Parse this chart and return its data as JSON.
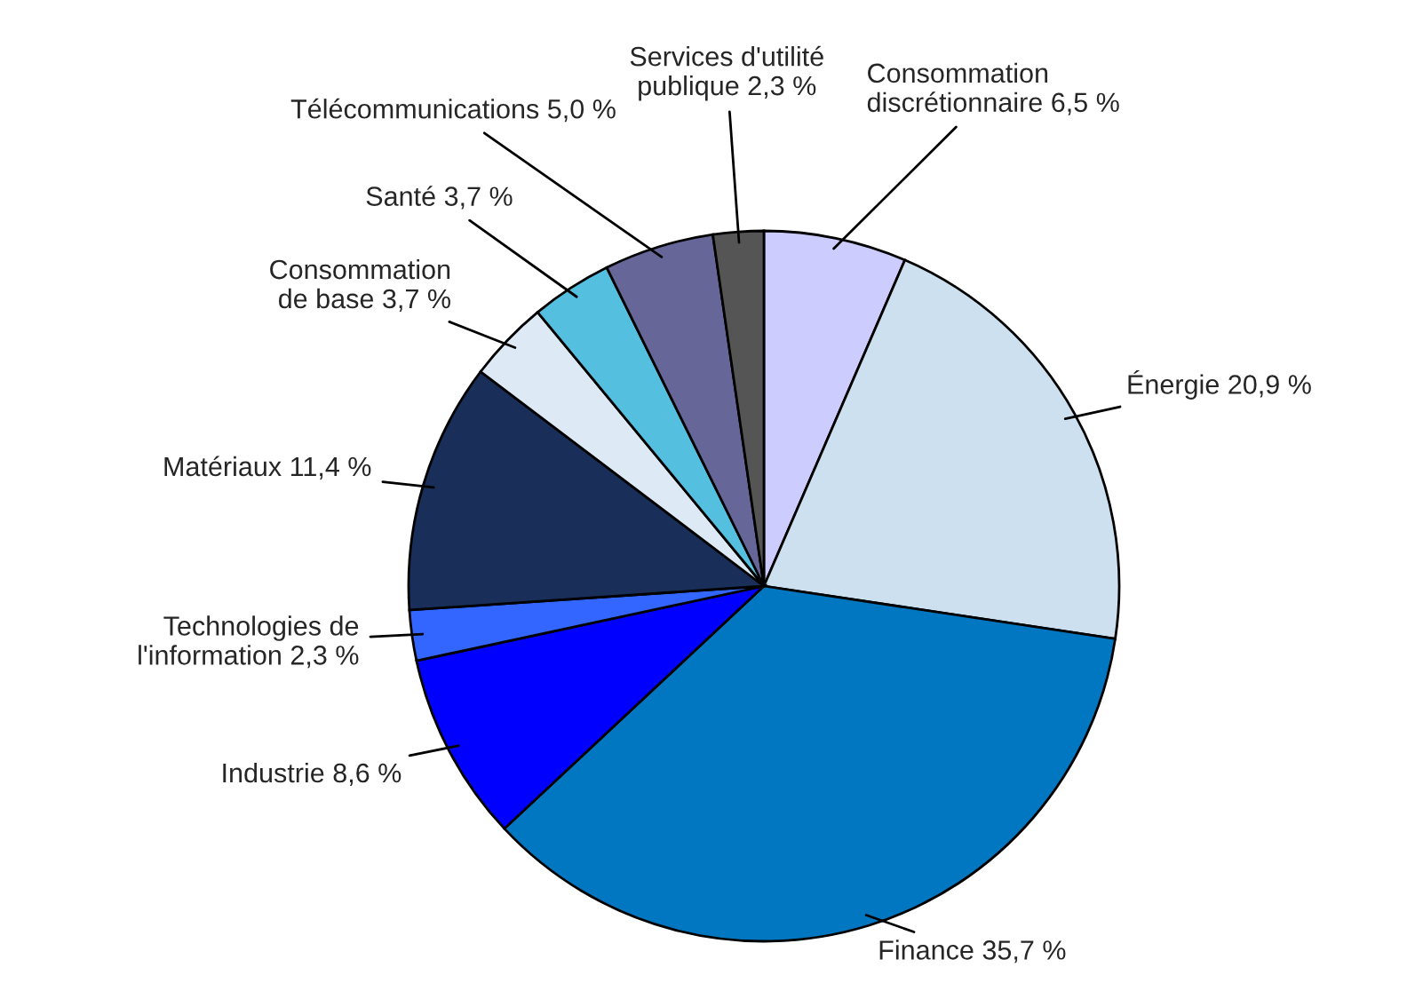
{
  "chart_data": {
    "type": "pie",
    "categories": [
      "Consommation\ndiscrétionnaire",
      "Énergie",
      "Finance",
      "Industrie",
      "Technologies de\nl'information",
      "Matériaux",
      "Consommation\nde base",
      "Santé",
      "Télécommunications",
      "Services d'utilité\npublique"
    ],
    "values": [
      6.5,
      20.9,
      35.7,
      8.6,
      2.3,
      11.4,
      3.7,
      3.7,
      5.0,
      2.3
    ],
    "value_labels": [
      "6,5 %",
      "20,9 %",
      "35,7 %",
      "8,6 %",
      "2,3 %",
      "11,4 %",
      "3,7 %",
      "3,7 %",
      "5,0 %",
      "2,3 %"
    ],
    "colors": [
      "#ccccff",
      "#cce0f0",
      "#0077c0",
      "#0000ff",
      "#3366ff",
      "#1a2e5a",
      "#dde9f5",
      "#55bfe0",
      "#666699",
      "#555555"
    ]
  }
}
